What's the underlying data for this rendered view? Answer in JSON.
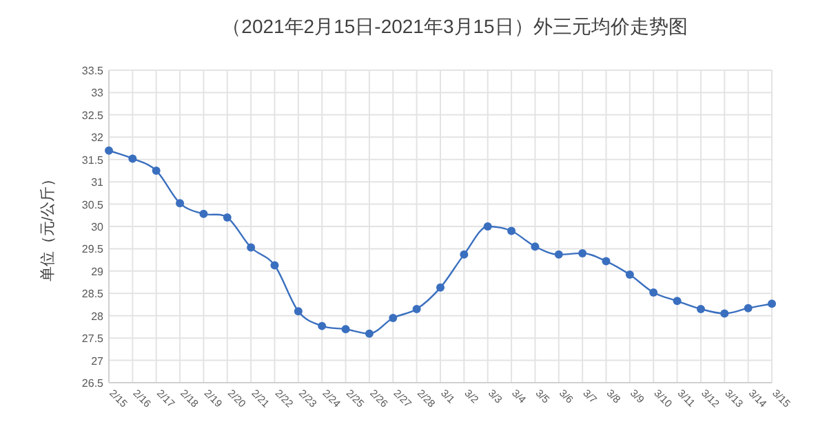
{
  "chart_data": {
    "type": "line",
    "title": "（2021年2月15日-2021年3月15日）外三元均价走势图",
    "ylabel": "单位（元/公斤）",
    "categories": [
      "2/15",
      "2/16",
      "2/17",
      "2/18",
      "2/19",
      "2/20",
      "2/21",
      "2/22",
      "2/23",
      "2/24",
      "2/25",
      "2/26",
      "2/27",
      "2/28",
      "3/1",
      "3/2",
      "3/3",
      "3/4",
      "3/5",
      "3/6",
      "3/7",
      "3/8",
      "3/9",
      "3/10",
      "3/11",
      "3/12",
      "3/13",
      "3/14",
      "3/15"
    ],
    "series": [
      {
        "color": "#3a6fbf",
        "values": [
          31.7,
          31.52,
          31.25,
          30.52,
          30.28,
          30.2,
          29.53,
          29.13,
          28.1,
          27.77,
          27.7,
          27.6,
          27.95,
          28.15,
          28.63,
          29.37,
          30.0,
          29.9,
          29.55,
          29.37,
          29.4,
          29.22,
          28.92,
          28.52,
          28.33,
          28.15,
          28.05,
          28.17,
          28.27
        ]
      }
    ],
    "ylim": [
      26.5,
      33.5
    ],
    "yticks": [
      26.5,
      27,
      27.5,
      28,
      28.5,
      29,
      29.5,
      30,
      30.5,
      31,
      31.5,
      32,
      32.5,
      33,
      33.5
    ],
    "grid": true,
    "marker": "circle",
    "line_style": "solid"
  }
}
